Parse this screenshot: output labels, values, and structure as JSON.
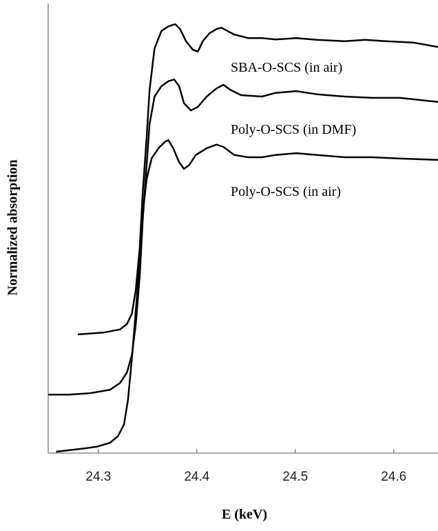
{
  "chart_data": {
    "type": "line",
    "xlabel": "E (keV)",
    "ylabel": "Normalized absorption",
    "xlim": [
      24.249,
      24.645
    ],
    "xticks": [
      24.3,
      24.4,
      24.5,
      24.6
    ],
    "ylim": [
      0,
      100
    ],
    "series": [
      {
        "name": "SBA-O-SCS (in air)",
        "color": "#000000",
        "x": [
          24.279,
          24.305,
          24.322,
          24.329,
          24.334,
          24.338,
          24.342,
          24.345,
          24.349,
          24.352,
          24.357,
          24.364,
          24.371,
          24.378,
          24.383,
          24.389,
          24.396,
          24.401,
          24.406,
          24.413,
          24.42,
          24.425,
          24.431,
          24.438,
          24.452,
          24.466,
          24.48,
          24.501,
          24.522,
          24.55,
          24.571,
          24.592,
          24.62,
          24.645
        ],
        "values": [
          26.4,
          26.8,
          27.5,
          28.7,
          31.0,
          36.3,
          45.6,
          57.8,
          70.1,
          80.8,
          90.0,
          93.9,
          94.9,
          95.4,
          94.3,
          91.6,
          89.7,
          89.3,
          91.6,
          93.4,
          94.3,
          94.6,
          93.9,
          93.1,
          92.3,
          92.3,
          92.0,
          92.3,
          91.9,
          91.6,
          91.9,
          91.6,
          91.3,
          90.3
        ]
      },
      {
        "name": "Poly-O-SCS (in DMF)",
        "color": "#000000",
        "x": [
          24.249,
          24.27,
          24.291,
          24.312,
          24.322,
          24.329,
          24.334,
          24.338,
          24.342,
          24.345,
          24.349,
          24.352,
          24.357,
          24.364,
          24.371,
          24.377,
          24.382,
          24.387,
          24.394,
          24.401,
          24.41,
          24.42,
          24.427,
          24.434,
          24.445,
          24.466,
          24.48,
          24.501,
          24.522,
          24.55,
          24.578,
          24.606,
          24.645
        ],
        "values": [
          13.0,
          13.0,
          13.3,
          14.1,
          15.6,
          17.9,
          21.8,
          28.7,
          39.4,
          51.7,
          64.0,
          73.2,
          79.3,
          81.6,
          82.7,
          83.1,
          81.6,
          77.8,
          76.2,
          77.0,
          79.3,
          81.1,
          81.9,
          80.8,
          79.6,
          79.3,
          80.1,
          80.5,
          79.8,
          79.3,
          79.0,
          79.0,
          78.1
        ]
      },
      {
        "name": "Poly-O-SCS (in air)",
        "color": "#000000",
        "x": [
          24.257,
          24.277,
          24.298,
          24.312,
          24.32,
          24.326,
          24.33,
          24.334,
          24.338,
          24.342,
          24.345,
          24.349,
          24.354,
          24.361,
          24.368,
          24.371,
          24.376,
          24.382,
          24.387,
          24.392,
          24.399,
          24.41,
          24.42,
          24.427,
          24.438,
          24.452,
          24.466,
          24.48,
          24.501,
          24.522,
          24.55,
          24.578,
          24.606,
          24.645
        ],
        "values": [
          0.3,
          0.8,
          1.4,
          2.3,
          3.8,
          6.4,
          11.8,
          21.0,
          31.7,
          42.5,
          53.2,
          60.9,
          65.5,
          67.8,
          69.3,
          69.6,
          67.8,
          64.7,
          63.2,
          64.0,
          66.3,
          67.8,
          68.6,
          68.1,
          66.3,
          65.8,
          65.8,
          66.3,
          66.7,
          66.3,
          65.8,
          65.8,
          65.5,
          65.2
        ]
      }
    ]
  }
}
